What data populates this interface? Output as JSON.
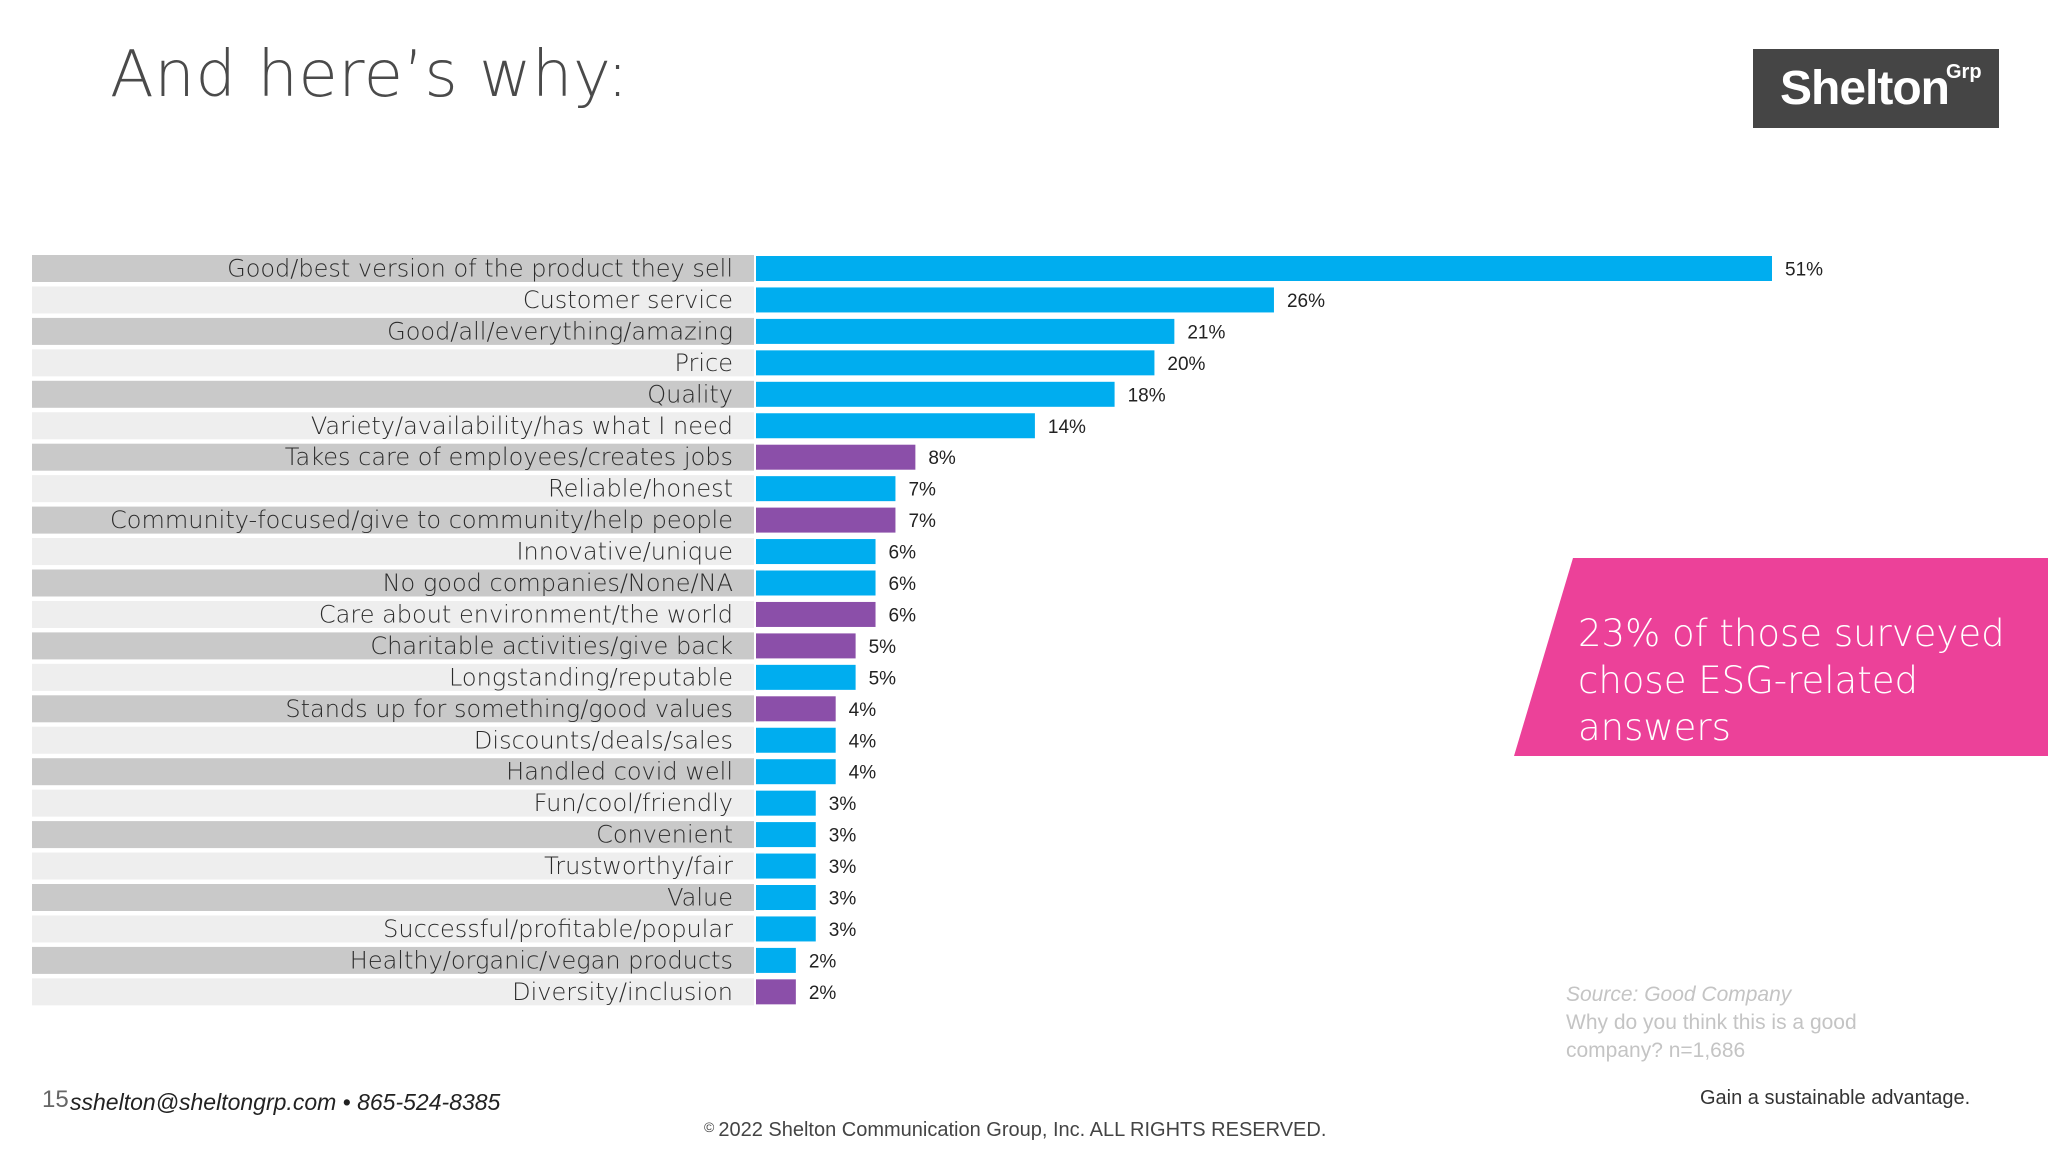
{
  "slide": {
    "title": "And here’s why:",
    "logo": {
      "word": "Shelton",
      "sup": "Grp"
    },
    "callout": {
      "text": "23% of those surveyed chose ESG-related answers",
      "color": "#ec4199"
    },
    "source": {
      "label": "Source: Good Company",
      "question": "Why do you think this is a good company? n=1,686"
    },
    "footer": {
      "page_number": "15",
      "contact": "sshelton@sheltongrp.com • 865-524-8385",
      "tagline": "Gain a sustainable advantage.",
      "copyright_symbol": "©",
      "copyright": "2022 Shelton Communication Group, Inc.  ALL RIGHTS RESERVED."
    }
  },
  "chart_data": {
    "type": "bar",
    "orientation": "horizontal",
    "value_suffix": "%",
    "colors": {
      "standard": "#00adef",
      "esg": "#8b4fa9"
    },
    "xlim": [
      0,
      51
    ],
    "items": [
      {
        "label": "Good/best version of the product they sell",
        "value": 51,
        "esg": false
      },
      {
        "label": "Customer service",
        "value": 26,
        "esg": false
      },
      {
        "label": "Good/all/everything/amazing",
        "value": 21,
        "esg": false
      },
      {
        "label": "Price",
        "value": 20,
        "esg": false
      },
      {
        "label": "Quality",
        "value": 18,
        "esg": false
      },
      {
        "label": "Variety/availability/has what I need",
        "value": 14,
        "esg": false
      },
      {
        "label": "Takes care of employees/creates jobs",
        "value": 8,
        "esg": true
      },
      {
        "label": "Reliable/honest",
        "value": 7,
        "esg": false
      },
      {
        "label": "Community-focused/give to community/help people",
        "value": 7,
        "esg": true
      },
      {
        "label": "Innovative/unique",
        "value": 6,
        "esg": false
      },
      {
        "label": "No good companies/None/NA",
        "value": 6,
        "esg": false
      },
      {
        "label": "Care about environment/the world",
        "value": 6,
        "esg": true
      },
      {
        "label": "Charitable activities/give back",
        "value": 5,
        "esg": true
      },
      {
        "label": "Longstanding/reputable",
        "value": 5,
        "esg": false
      },
      {
        "label": "Stands up for something/good values",
        "value": 4,
        "esg": true
      },
      {
        "label": "Discounts/deals/sales",
        "value": 4,
        "esg": false
      },
      {
        "label": "Handled covid well",
        "value": 4,
        "esg": false
      },
      {
        "label": "Fun/cool/friendly",
        "value": 3,
        "esg": false
      },
      {
        "label": "Convenient",
        "value": 3,
        "esg": false
      },
      {
        "label": "Trustworthy/fair",
        "value": 3,
        "esg": false
      },
      {
        "label": "Value",
        "value": 3,
        "esg": false
      },
      {
        "label": "Successful/profitable/popular",
        "value": 3,
        "esg": false
      },
      {
        "label": "Healthy/organic/vegan products",
        "value": 2,
        "esg": false
      },
      {
        "label": "Diversity/inclusion",
        "value": 2,
        "esg": true
      }
    ]
  }
}
